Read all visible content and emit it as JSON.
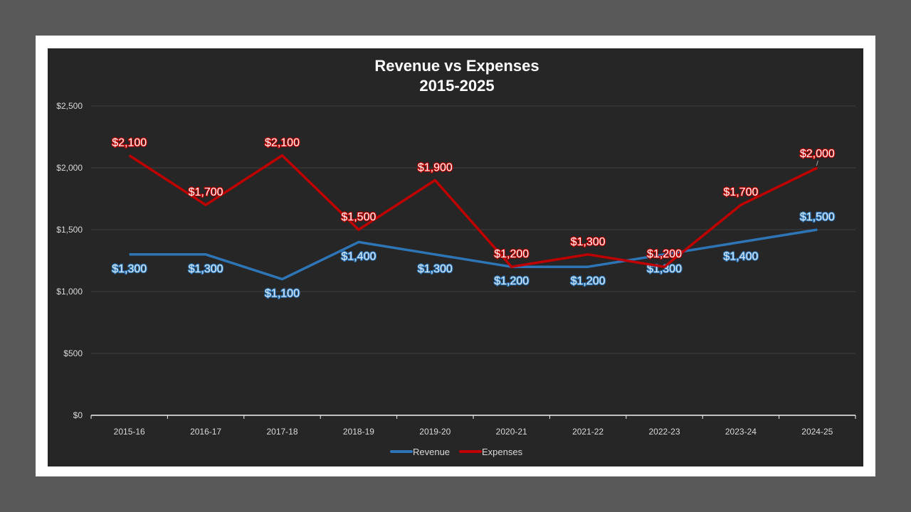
{
  "chart_data": {
    "type": "line",
    "title": "Revenue vs Expenses",
    "subtitle": "2015-2025",
    "categories": [
      "2015-16",
      "2016-17",
      "2017-18",
      "2018-19",
      "2019-20",
      "2020-21",
      "2021-22",
      "2022-23",
      "2023-24",
      "2024-25"
    ],
    "series": [
      {
        "name": "Revenue",
        "color": "#2e75b6",
        "values": [
          1300,
          1300,
          1100,
          1400,
          1300,
          1200,
          1200,
          1300,
          1400,
          1500
        ]
      },
      {
        "name": "Expenses",
        "color": "#c00000",
        "values": [
          2100,
          1700,
          2100,
          1500,
          1900,
          1200,
          1300,
          1200,
          1700,
          2000
        ]
      }
    ],
    "yticks": [
      "$0",
      "$500",
      "$1,000",
      "$1,500",
      "$2,000",
      "$2,500"
    ],
    "ylim": [
      0,
      2500
    ],
    "ystep": 500,
    "grid": true,
    "data_labels": true,
    "legend": "bottom"
  }
}
